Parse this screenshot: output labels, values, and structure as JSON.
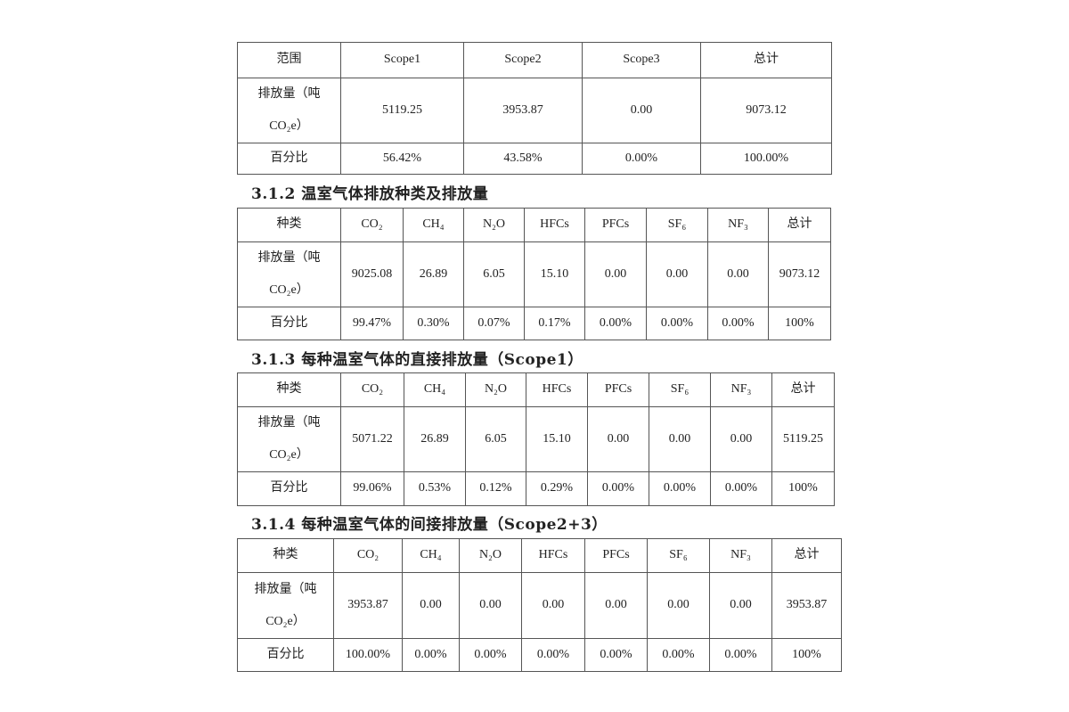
{
  "tables": [
    {
      "heading": "",
      "header": [
        "范围",
        "Scope1",
        "Scope2",
        "Scope3",
        "总计"
      ],
      "rows": [
        [
          "排放量（吨CO₂e）",
          "5119.25",
          "3953.87",
          "0.00",
          "9073.12"
        ],
        [
          "百分比",
          "56.42%",
          "43.58%",
          "0.00%",
          "100.00%"
        ]
      ]
    },
    {
      "heading": "3.1.2 温室气体排放种类及排放量",
      "header": [
        "种类",
        "CO₂",
        "CH₄",
        "N₂O",
        "HFCs",
        "PFCs",
        "SF₆",
        "NF₃",
        "总计"
      ],
      "rows": [
        [
          "排放量（吨CO₂e）",
          "9025.08",
          "26.89",
          "6.05",
          "15.10",
          "0.00",
          "0.00",
          "0.00",
          "9073.12"
        ],
        [
          "百分比",
          "99.47%",
          "0.30%",
          "0.07%",
          "0.17%",
          "0.00%",
          "0.00%",
          "0.00%",
          "100%"
        ]
      ]
    },
    {
      "heading": "3.1.3 每种温室气体的直接排放量（Scope1）",
      "header": [
        "种类",
        "CO₂",
        "CH₄",
        "N₂O",
        "HFCs",
        "PFCs",
        "SF₆",
        "NF₃",
        "总计"
      ],
      "rows": [
        [
          "排放量（吨CO₂e）",
          "5071.22",
          "26.89",
          "6.05",
          "15.10",
          "0.00",
          "0.00",
          "0.00",
          "5119.25"
        ],
        [
          "百分比",
          "99.06%",
          "0.53%",
          "0.12%",
          "0.29%",
          "0.00%",
          "0.00%",
          "0.00%",
          "100%"
        ]
      ]
    },
    {
      "heading": "3.1.4 每种温室气体的间接排放量（Scope2+3）",
      "header": [
        "种类",
        "CO₂",
        "CH₄",
        "N₂O",
        "HFCs",
        "PFCs",
        "SF₆",
        "NF₃",
        "总计"
      ],
      "rows": [
        [
          "排放量（吨CO₂e）",
          "3953.87",
          "0.00",
          "0.00",
          "0.00",
          "0.00",
          "0.00",
          "0.00",
          "3953.87"
        ],
        [
          "百分比",
          "100.00%",
          "0.00%",
          "0.00%",
          "0.00%",
          "0.00%",
          "0.00%",
          "0.00%",
          "100%"
        ]
      ]
    }
  ]
}
